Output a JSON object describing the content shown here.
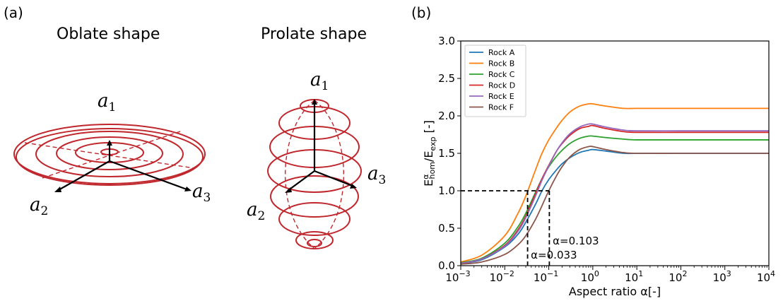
{
  "panels": {
    "a_tag": "(a)",
    "b_tag": "(b)"
  },
  "oblate": {
    "title": "Oblate shape",
    "axis1": "a",
    "axis1_sub": "1",
    "axis2": "a",
    "axis2_sub": "2",
    "axis3": "a",
    "axis3_sub": "3"
  },
  "prolate": {
    "title": "Prolate shape",
    "axis1": "a",
    "axis1_sub": "1",
    "axis2": "a",
    "axis2_sub": "2",
    "axis3": "a",
    "axis3_sub": "3"
  },
  "colors": {
    "shape": "#c0272d",
    "axes": "#000000"
  },
  "chart_data": {
    "type": "line",
    "xscale": "log",
    "xlim": [
      0.001,
      10000
    ],
    "ylim": [
      0.0,
      3.0
    ],
    "xlabel": "Aspect ratio α[-]",
    "ylabel": "E^α_hom/E_exp [-]",
    "xticks": [
      {
        "v": 0.001,
        "base": "10",
        "exp": "−3"
      },
      {
        "v": 0.01,
        "base": "10",
        "exp": "−2"
      },
      {
        "v": 0.1,
        "base": "10",
        "exp": "−1"
      },
      {
        "v": 1,
        "base": "10",
        "exp": "0"
      },
      {
        "v": 10,
        "base": "10",
        "exp": "1"
      },
      {
        "v": 100,
        "base": "10",
        "exp": "2"
      },
      {
        "v": 1000,
        "base": "10",
        "exp": "3"
      },
      {
        "v": 10000,
        "base": "10",
        "exp": "4"
      }
    ],
    "yticks": [
      "0.0",
      "0.5",
      "1.0",
      "1.5",
      "2.0",
      "2.5",
      "3.0"
    ],
    "legend_position": "top-left",
    "series": [
      {
        "name": "Rock A",
        "color": "#1f77b4",
        "x": [
          0.001,
          0.003,
          0.01,
          0.02,
          0.03,
          0.05,
          0.07,
          0.1,
          0.15,
          0.2,
          0.3,
          0.5,
          0.8,
          1,
          2,
          5,
          10,
          100,
          1000,
          10000
        ],
        "y": [
          0.03,
          0.08,
          0.25,
          0.42,
          0.58,
          0.82,
          1.0,
          1.15,
          1.28,
          1.36,
          1.44,
          1.51,
          1.54,
          1.55,
          1.53,
          1.5,
          1.5,
          1.5,
          1.5,
          1.5
        ]
      },
      {
        "name": "Rock B",
        "color": "#ff7f0e",
        "x": [
          0.001,
          0.003,
          0.01,
          0.02,
          0.03,
          0.05,
          0.07,
          0.1,
          0.15,
          0.2,
          0.3,
          0.5,
          0.8,
          1,
          2,
          5,
          10,
          100,
          1000,
          10000
        ],
        "y": [
          0.05,
          0.14,
          0.4,
          0.7,
          0.93,
          1.28,
          1.5,
          1.68,
          1.84,
          1.94,
          2.05,
          2.13,
          2.16,
          2.16,
          2.13,
          2.1,
          2.1,
          2.1,
          2.1,
          2.1
        ]
      },
      {
        "name": "Rock C",
        "color": "#2ca02c",
        "x": [
          0.001,
          0.003,
          0.01,
          0.02,
          0.03,
          0.05,
          0.07,
          0.1,
          0.15,
          0.2,
          0.3,
          0.5,
          0.8,
          1,
          2,
          5,
          10,
          100,
          1000,
          10000
        ],
        "y": [
          0.04,
          0.1,
          0.3,
          0.52,
          0.7,
          0.98,
          1.16,
          1.32,
          1.46,
          1.54,
          1.63,
          1.7,
          1.73,
          1.73,
          1.71,
          1.69,
          1.68,
          1.68,
          1.68,
          1.68
        ]
      },
      {
        "name": "Rock D",
        "color": "#d62728",
        "x": [
          0.001,
          0.003,
          0.01,
          0.02,
          0.03,
          0.05,
          0.07,
          0.1,
          0.15,
          0.2,
          0.3,
          0.5,
          0.8,
          1,
          2,
          5,
          10,
          100,
          1000,
          10000
        ],
        "y": [
          0.03,
          0.09,
          0.27,
          0.48,
          0.66,
          0.96,
          1.16,
          1.34,
          1.53,
          1.63,
          1.74,
          1.83,
          1.86,
          1.87,
          1.83,
          1.79,
          1.78,
          1.78,
          1.78,
          1.78
        ]
      },
      {
        "name": "Rock E",
        "color": "#9467bd",
        "x": [
          0.001,
          0.003,
          0.01,
          0.02,
          0.03,
          0.05,
          0.07,
          0.1,
          0.15,
          0.2,
          0.3,
          0.5,
          0.8,
          1,
          2,
          5,
          10,
          100,
          1000,
          10000
        ],
        "y": [
          0.03,
          0.09,
          0.26,
          0.46,
          0.64,
          0.93,
          1.14,
          1.33,
          1.53,
          1.64,
          1.76,
          1.85,
          1.89,
          1.89,
          1.85,
          1.81,
          1.8,
          1.8,
          1.8,
          1.8
        ]
      },
      {
        "name": "Rock F",
        "color": "#8c564b",
        "x": [
          0.001,
          0.003,
          0.01,
          0.02,
          0.03,
          0.05,
          0.07,
          0.1,
          0.15,
          0.2,
          0.3,
          0.5,
          0.8,
          1,
          2,
          5,
          10,
          100,
          1000,
          10000
        ],
        "y": [
          0.02,
          0.05,
          0.15,
          0.28,
          0.4,
          0.62,
          0.8,
          1.0,
          1.2,
          1.32,
          1.45,
          1.55,
          1.59,
          1.59,
          1.55,
          1.51,
          1.5,
          1.5,
          1.5,
          1.5
        ]
      }
    ],
    "reference_lines": [
      {
        "type": "horizontal",
        "y": 1.0,
        "x_to": 0.103,
        "style": "dashed"
      },
      {
        "type": "vertical",
        "x": 0.033,
        "y_to": 1.0,
        "style": "dashed"
      },
      {
        "type": "vertical",
        "x": 0.103,
        "y_to": 1.0,
        "style": "dashed"
      }
    ],
    "annotations": [
      {
        "text": "α=0.103",
        "x": 0.11,
        "y": 0.33
      },
      {
        "text": "α=0.033",
        "x": 0.035,
        "y": 0.14
      }
    ]
  }
}
